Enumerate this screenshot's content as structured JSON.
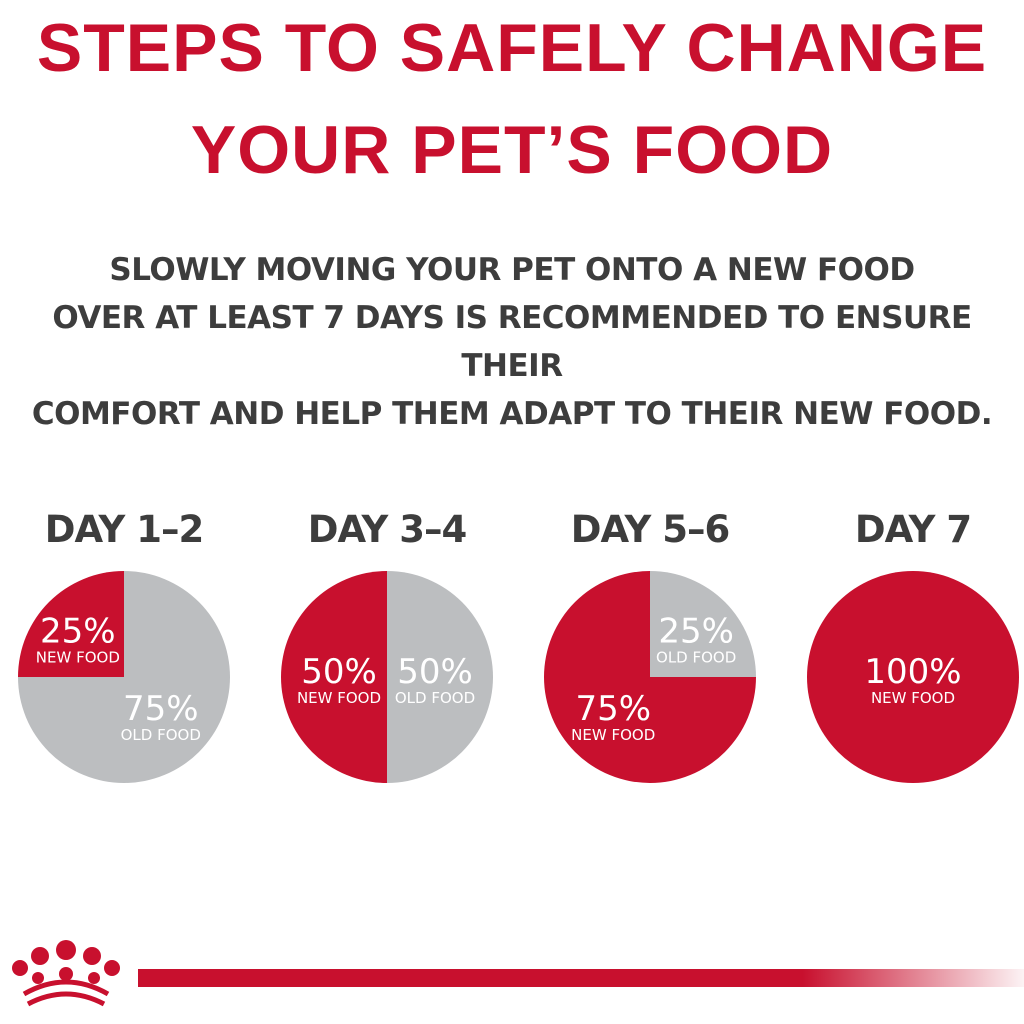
{
  "title": {
    "line1": "STEPS TO SAFELY CHANGE",
    "line2": "YOUR PET’S FOOD"
  },
  "subtitle": {
    "line1": "SLOWLY MOVING YOUR PET ONTO A NEW FOOD",
    "line2": "OVER AT LEAST 7 DAYS IS RECOMMENDED TO ENSURE THEIR",
    "line3": "COMFORT AND HELP THEM ADAPT TO THEIR NEW FOOD."
  },
  "colors": {
    "brand_red": "#c8102e",
    "old_food_gray": "#bcbec0",
    "text_gray": "#3d3d3d"
  },
  "icons": {
    "logo": "crown-icon"
  },
  "chart_data": {
    "type": "pie",
    "charts": [
      {
        "label": "DAY 1–2",
        "slices": [
          {
            "name": "NEW FOOD",
            "value": 25,
            "display": "25%"
          },
          {
            "name": "OLD FOOD",
            "value": 75,
            "display": "75%"
          }
        ]
      },
      {
        "label": "DAY 3–4",
        "slices": [
          {
            "name": "NEW FOOD",
            "value": 50,
            "display": "50%"
          },
          {
            "name": "OLD FOOD",
            "value": 50,
            "display": "50%"
          }
        ]
      },
      {
        "label": "DAY 5–6",
        "slices": [
          {
            "name": "NEW FOOD",
            "value": 75,
            "display": "75%"
          },
          {
            "name": "OLD FOOD",
            "value": 25,
            "display": "25%"
          }
        ]
      },
      {
        "label": "DAY 7",
        "slices": [
          {
            "name": "NEW FOOD",
            "value": 100,
            "display": "100%"
          }
        ]
      }
    ]
  }
}
